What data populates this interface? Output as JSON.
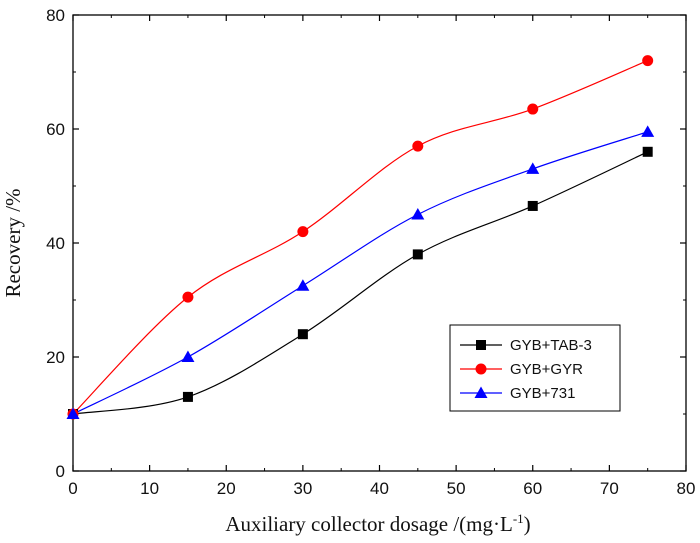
{
  "chart_data": {
    "type": "line",
    "title": "",
    "xlabel": "Auxiliary collector  dosage /(mg·L",
    "xlabel_sup": "-1",
    "xlabel_close": ")",
    "ylabel": "Recovery /%",
    "xlim": [
      0,
      80
    ],
    "ylim": [
      0,
      80
    ],
    "xticks": [
      0,
      10,
      20,
      30,
      40,
      50,
      60,
      70,
      80
    ],
    "yticks": [
      0,
      20,
      40,
      60,
      80
    ],
    "grid": false,
    "legend_position": "bottom-right",
    "x": [
      0,
      15,
      30,
      45,
      60,
      75
    ],
    "series": [
      {
        "name": "GYB+TAB-3",
        "values": [
          10,
          13,
          24,
          38,
          46.5,
          56
        ],
        "color": "#000000",
        "marker": "square"
      },
      {
        "name": "GYB+GYR",
        "values": [
          10,
          30.5,
          42,
          57,
          63.5,
          72
        ],
        "color": "#ff0000",
        "marker": "circle"
      },
      {
        "name": "GYB+731",
        "values": [
          10,
          20,
          32.5,
          45,
          53,
          59.5
        ],
        "color": "#0000ff",
        "marker": "triangle"
      }
    ]
  }
}
